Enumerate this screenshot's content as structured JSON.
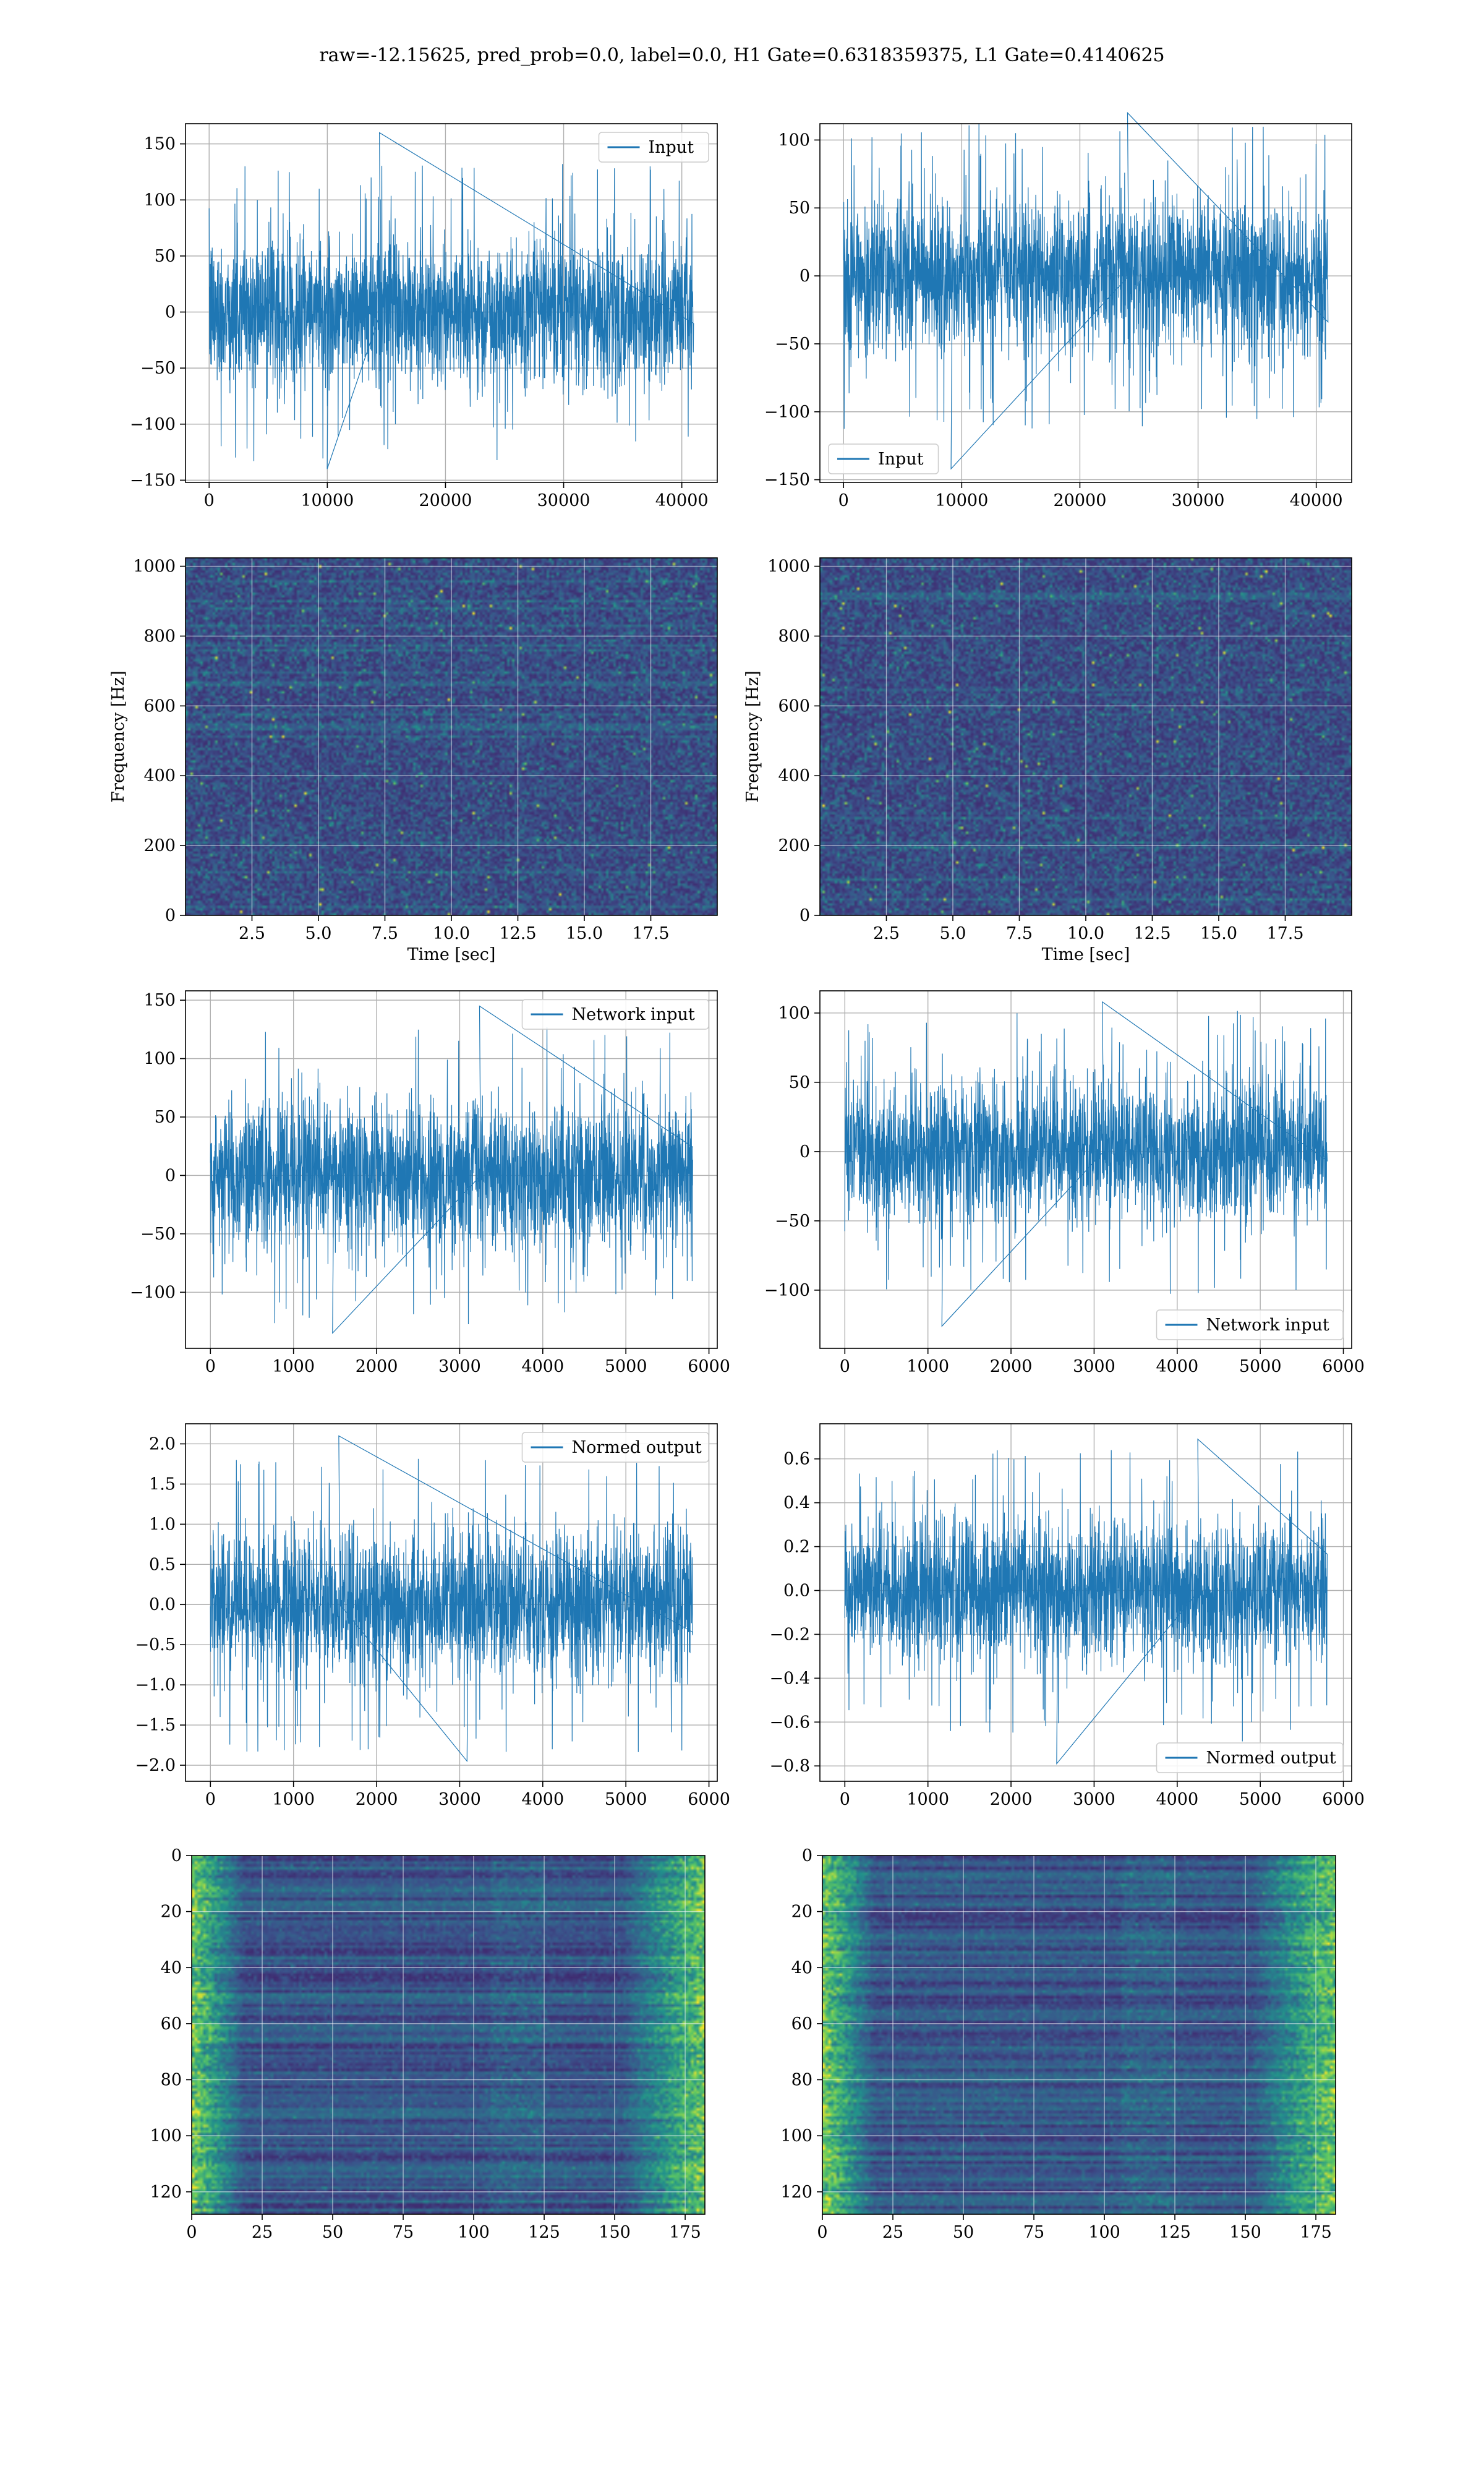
{
  "title": "raw=-12.15625, pred_prob=0.0, label=0.0, H1 Gate=0.6318359375, L1 Gate=0.4140625",
  "colors": {
    "line": "#1f77b4",
    "heat_low": "#440154",
    "heat_mid": "#31688e",
    "heat_hi": "#35b779",
    "heat_peak": "#fde725",
    "grid": "#b0b0b0"
  },
  "chart_data": [
    {
      "id": "h1-input",
      "type": "line",
      "series": [
        {
          "name": "Input",
          "n": 40960,
          "range": [
            -140,
            160
          ]
        }
      ],
      "xlim": [
        -2000,
        43000
      ],
      "ylim": [
        -152,
        168
      ],
      "xticks": [
        0,
        10000,
        20000,
        30000,
        40000
      ],
      "yticks": [
        -150,
        -100,
        -50,
        0,
        50,
        100,
        150
      ],
      "legend": "upper right",
      "grid": true,
      "xlabel": "",
      "ylabel": ""
    },
    {
      "id": "l1-input",
      "type": "line",
      "series": [
        {
          "name": "Input",
          "n": 40960,
          "range": [
            -142,
            120
          ]
        }
      ],
      "xlim": [
        -2000,
        43000
      ],
      "ylim": [
        -152,
        112
      ],
      "xticks": [
        0,
        10000,
        20000,
        30000,
        40000
      ],
      "yticks": [
        -150,
        -100,
        -50,
        0,
        50,
        100
      ],
      "legend": "lower left",
      "grid": true,
      "xlabel": "",
      "ylabel": ""
    },
    {
      "id": "h1-spectrogram",
      "type": "heatmap",
      "xlim": [
        0,
        20
      ],
      "ylim": [
        0,
        1024
      ],
      "xticks": [
        2.5,
        5.0,
        7.5,
        10.0,
        12.5,
        15.0,
        17.5
      ],
      "yticks": [
        0,
        200,
        400,
        600,
        800,
        1000
      ],
      "xlabel": "Time [sec]",
      "ylabel": "Frequency [Hz]",
      "grid": true
    },
    {
      "id": "l1-spectrogram",
      "type": "heatmap",
      "xlim": [
        0,
        20
      ],
      "ylim": [
        0,
        1024
      ],
      "xticks": [
        2.5,
        5.0,
        7.5,
        10.0,
        12.5,
        15.0,
        17.5
      ],
      "yticks": [
        0,
        200,
        400,
        600,
        800,
        1000
      ],
      "xlabel": "Time [sec]",
      "ylabel": "Frequency [Hz]",
      "grid": true
    },
    {
      "id": "h1-network-input",
      "type": "line",
      "series": [
        {
          "name": "Network input",
          "n": 5800,
          "range": [
            -135,
            145
          ]
        }
      ],
      "xlim": [
        -300,
        6100
      ],
      "ylim": [
        -148,
        158
      ],
      "xticks": [
        0,
        1000,
        2000,
        3000,
        4000,
        5000,
        6000
      ],
      "yticks": [
        -100,
        -50,
        0,
        50,
        100,
        150
      ],
      "legend": "upper right",
      "grid": true,
      "xlabel": "",
      "ylabel": ""
    },
    {
      "id": "l1-network-input",
      "type": "line",
      "series": [
        {
          "name": "Network input",
          "n": 5800,
          "range": [
            -126,
            108
          ]
        }
      ],
      "xlim": [
        -300,
        6100
      ],
      "ylim": [
        -142,
        116
      ],
      "xticks": [
        0,
        1000,
        2000,
        3000,
        4000,
        5000,
        6000
      ],
      "yticks": [
        -100,
        -50,
        0,
        50,
        100
      ],
      "legend": "lower right",
      "grid": true,
      "xlabel": "",
      "ylabel": ""
    },
    {
      "id": "h1-normed-output",
      "type": "line",
      "series": [
        {
          "name": "Normed output",
          "n": 5800,
          "range": [
            -1.95,
            2.1
          ]
        }
      ],
      "xlim": [
        -300,
        6100
      ],
      "ylim": [
        -2.2,
        2.25
      ],
      "xticks": [
        0,
        1000,
        2000,
        3000,
        4000,
        5000,
        6000
      ],
      "yticks": [
        -2.0,
        -1.5,
        -1.0,
        -0.5,
        0.0,
        0.5,
        1.0,
        1.5,
        2.0
      ],
      "legend": "upper right",
      "grid": true,
      "xlabel": "",
      "ylabel": ""
    },
    {
      "id": "l1-normed-output",
      "type": "line",
      "series": [
        {
          "name": "Normed output",
          "n": 5800,
          "range": [
            -0.79,
            0.69
          ]
        }
      ],
      "xlim": [
        -300,
        6100
      ],
      "ylim": [
        -0.87,
        0.76
      ],
      "xticks": [
        0,
        1000,
        2000,
        3000,
        4000,
        5000,
        6000
      ],
      "yticks": [
        -0.8,
        -0.6,
        -0.4,
        -0.2,
        0.0,
        0.2,
        0.4,
        0.6
      ],
      "legend": "lower right",
      "grid": true,
      "xlabel": "",
      "ylabel": ""
    },
    {
      "id": "h1-feature-map",
      "type": "heatmap",
      "xlim": [
        0,
        182
      ],
      "ylim": [
        128,
        0
      ],
      "xticks": [
        0,
        25,
        50,
        75,
        100,
        125,
        150,
        175
      ],
      "yticks": [
        0,
        20,
        40,
        60,
        80,
        100,
        120
      ],
      "xlabel": "",
      "ylabel": "",
      "grid": true
    },
    {
      "id": "l1-feature-map",
      "type": "heatmap",
      "xlim": [
        0,
        182
      ],
      "ylim": [
        128,
        0
      ],
      "xticks": [
        0,
        25,
        50,
        75,
        100,
        125,
        150,
        175
      ],
      "yticks": [
        0,
        20,
        40,
        60,
        80,
        100,
        120
      ],
      "xlabel": "",
      "ylabel": "",
      "grid": true
    }
  ]
}
